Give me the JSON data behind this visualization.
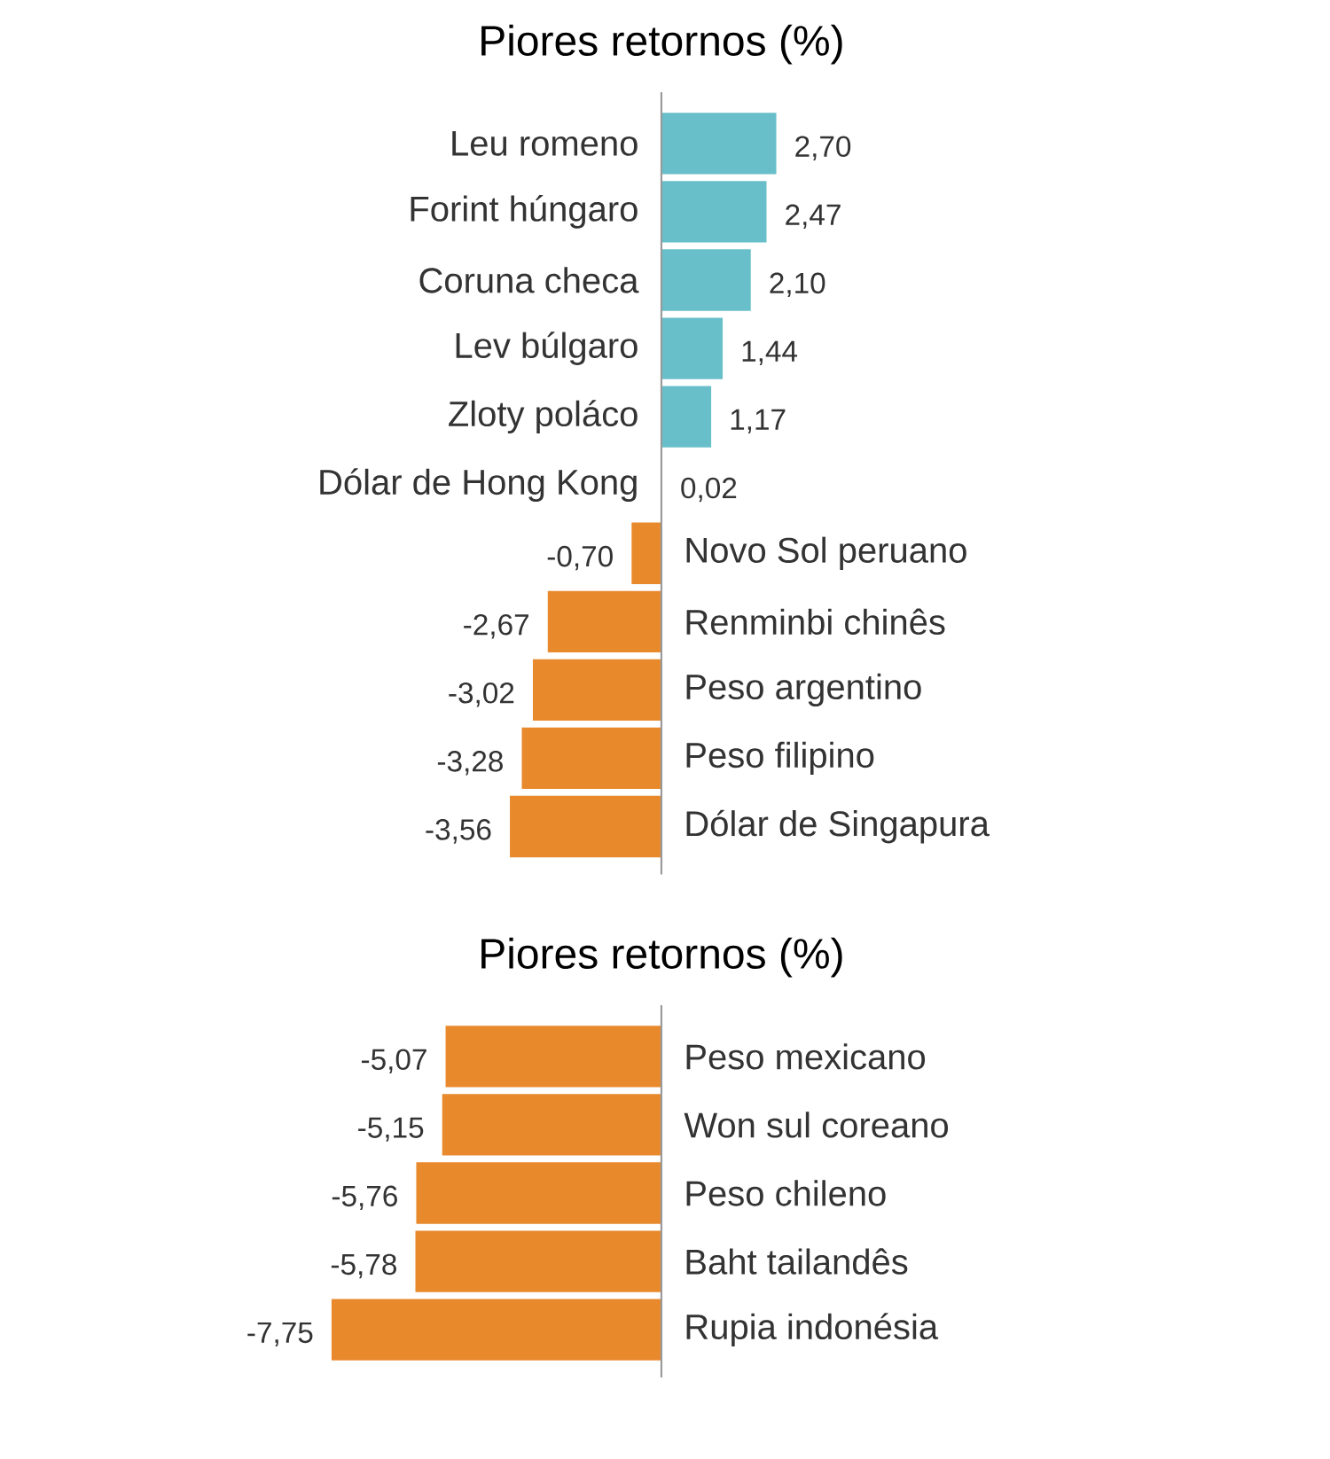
{
  "chart_data": [
    {
      "type": "bar",
      "orientation": "horizontal",
      "title": "Piores retornos (%)",
      "categories": [
        "Leu romeno",
        "Forint húngaro",
        "Coruna checa",
        "Lev búlgaro",
        "Zloty poláco",
        "Dólar de Hong Kong",
        "Novo Sol peruano",
        "Renminbi chinês",
        "Peso argentino",
        "Peso filipino",
        "Dólar de Singapura"
      ],
      "values": [
        2.7,
        2.47,
        2.1,
        1.44,
        1.17,
        0.02,
        -0.7,
        -2.67,
        -3.02,
        -3.28,
        -3.56
      ],
      "value_labels": [
        "2,70",
        "2,47",
        "2,10",
        "1,44",
        "1,17",
        "0,02",
        "-0,70",
        "-2,67",
        "-3,02",
        "-3,28",
        "-3,56"
      ],
      "colors": [
        "#68bfca",
        "#68bfca",
        "#68bfca",
        "#68bfca",
        "#68bfca",
        "#68bfca",
        "#e8892c",
        "#e8892c",
        "#e8892c",
        "#e8892c",
        "#e8892c"
      ]
    },
    {
      "type": "bar",
      "orientation": "horizontal",
      "title": "Piores retornos (%)",
      "categories": [
        "Peso mexicano",
        "Won sul coreano",
        "Peso chileno",
        "Baht tailandês",
        "Rupia indonésia"
      ],
      "values": [
        -5.07,
        -5.15,
        -5.76,
        -5.78,
        -7.75
      ],
      "value_labels": [
        "-5,07",
        "-5,15",
        "-5,76",
        "-5,78",
        "-7,75"
      ],
      "colors": [
        "#e8892c",
        "#e8892c",
        "#e8892c",
        "#e8892c",
        "#e8892c"
      ]
    }
  ]
}
